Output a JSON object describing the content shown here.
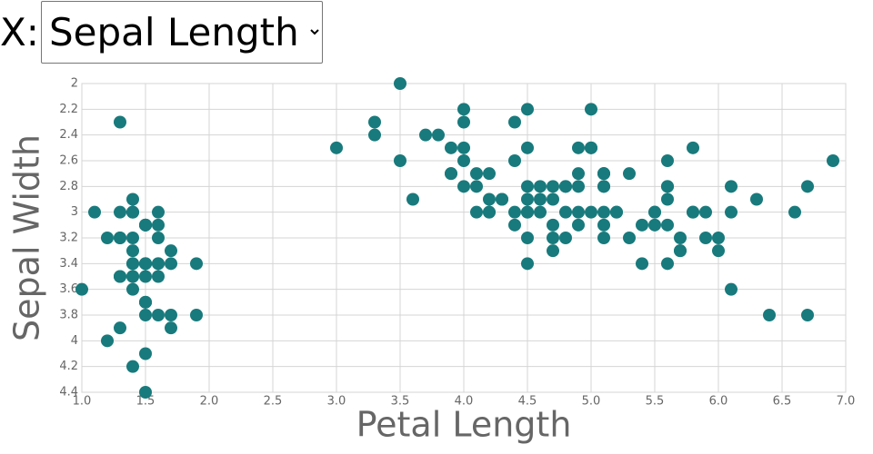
{
  "controls": {
    "label": "X:",
    "options": [
      "Sepal Length"
    ]
  },
  "chart_data": {
    "type": "scatter",
    "x_label": "Petal Length",
    "y_label": "Sepal Width",
    "x": [
      1.4,
      1.4,
      1.3,
      1.5,
      1.4,
      1.7,
      1.4,
      1.5,
      1.4,
      1.5,
      1.5,
      1.6,
      1.4,
      1.1,
      1.2,
      1.5,
      1.3,
      1.4,
      1.7,
      1.5,
      1.7,
      1.5,
      1.0,
      1.7,
      1.9,
      1.6,
      1.6,
      1.5,
      1.4,
      1.6,
      1.6,
      1.5,
      1.5,
      1.4,
      1.5,
      1.2,
      1.3,
      1.5,
      1.3,
      1.5,
      1.3,
      1.3,
      1.3,
      1.6,
      1.9,
      1.4,
      1.6,
      1.4,
      1.5,
      1.4,
      4.7,
      4.5,
      4.9,
      4.0,
      4.6,
      4.5,
      4.7,
      3.3,
      4.6,
      3.9,
      3.5,
      4.2,
      4.0,
      4.7,
      3.6,
      4.4,
      4.5,
      4.1,
      4.5,
      3.9,
      4.8,
      4.0,
      4.9,
      4.7,
      4.3,
      4.4,
      4.8,
      5.0,
      4.5,
      3.5,
      3.8,
      3.7,
      3.9,
      5.1,
      4.5,
      4.5,
      4.7,
      4.4,
      4.1,
      4.0,
      4.4,
      4.6,
      4.0,
      3.3,
      4.2,
      4.2,
      4.2,
      4.3,
      3.0,
      4.1,
      6.0,
      5.1,
      5.9,
      5.6,
      5.8,
      6.6,
      4.5,
      6.3,
      5.8,
      6.1,
      5.1,
      5.3,
      5.5,
      5.0,
      5.1,
      5.3,
      5.5,
      6.7,
      6.9,
      5.0,
      5.7,
      4.9,
      6.7,
      4.9,
      5.7,
      6.0,
      4.8,
      4.9,
      5.6,
      5.8,
      6.1,
      6.4,
      5.6,
      5.1,
      5.6,
      6.1,
      5.6,
      5.5,
      4.8,
      5.4,
      5.6,
      5.1,
      5.1,
      5.9,
      5.7,
      5.2,
      5.0,
      5.2,
      5.4,
      5.1
    ],
    "values": [
      3.5,
      3.0,
      3.2,
      3.1,
      3.6,
      3.9,
      3.4,
      3.4,
      2.9,
      3.1,
      3.7,
      3.4,
      3.0,
      3.0,
      4.0,
      4.4,
      3.9,
      3.5,
      3.8,
      3.8,
      3.4,
      3.7,
      3.6,
      3.3,
      3.4,
      3.0,
      3.4,
      3.5,
      3.4,
      3.2,
      3.1,
      3.4,
      4.1,
      4.2,
      3.1,
      3.2,
      3.5,
      3.1,
      3.0,
      3.4,
      3.5,
      2.3,
      3.2,
      3.5,
      3.8,
      3.0,
      3.8,
      3.2,
      3.7,
      3.3,
      3.2,
      3.2,
      3.1,
      2.3,
      2.8,
      2.8,
      3.3,
      2.4,
      2.9,
      2.7,
      2.0,
      3.0,
      2.2,
      2.9,
      2.9,
      3.1,
      3.0,
      2.7,
      2.2,
      2.5,
      3.2,
      2.8,
      2.5,
      2.8,
      2.9,
      3.0,
      2.8,
      3.0,
      2.9,
      2.6,
      2.4,
      2.4,
      2.7,
      2.7,
      3.0,
      3.4,
      3.1,
      2.3,
      3.0,
      2.5,
      2.6,
      3.0,
      2.6,
      2.3,
      2.7,
      3.0,
      2.9,
      2.9,
      2.5,
      2.8,
      3.3,
      2.7,
      3.0,
      2.9,
      3.0,
      3.0,
      2.5,
      2.9,
      2.5,
      3.6,
      3.2,
      2.7,
      3.0,
      2.5,
      2.8,
      3.2,
      3.0,
      3.8,
      2.6,
      2.2,
      3.2,
      2.8,
      2.8,
      2.7,
      3.3,
      3.2,
      2.8,
      3.0,
      2.8,
      3.0,
      2.8,
      3.8,
      2.8,
      2.8,
      2.6,
      3.0,
      3.4,
      3.1,
      3.0,
      3.1,
      3.1,
      3.1,
      2.7,
      3.2,
      3.3,
      3.0,
      2.5,
      3.0,
      3.4,
      3.0
    ],
    "color": "#187a7c",
    "xlim": [
      1,
      7
    ],
    "xticks": [
      {
        "value": 1,
        "label": "1.0"
      },
      1.5,
      {
        "value": 2,
        "label": "2.0"
      },
      2.5,
      {
        "value": 3,
        "label": "3.0"
      },
      3.5,
      {
        "value": 4,
        "label": "4.0"
      },
      4.5,
      {
        "value": 5,
        "label": "5.0"
      },
      5.5,
      {
        "value": 6,
        "label": "6.0"
      },
      6.5,
      {
        "value": 7,
        "label": "7.0"
      }
    ],
    "ylim": [
      2,
      4.4
    ],
    "y_reversed": true,
    "yticks": [
      2,
      2.2,
      2.4,
      2.6,
      2.8,
      3,
      3.2,
      3.4,
      3.6,
      3.8,
      4,
      4.2,
      4.4
    ],
    "grid": true
  }
}
